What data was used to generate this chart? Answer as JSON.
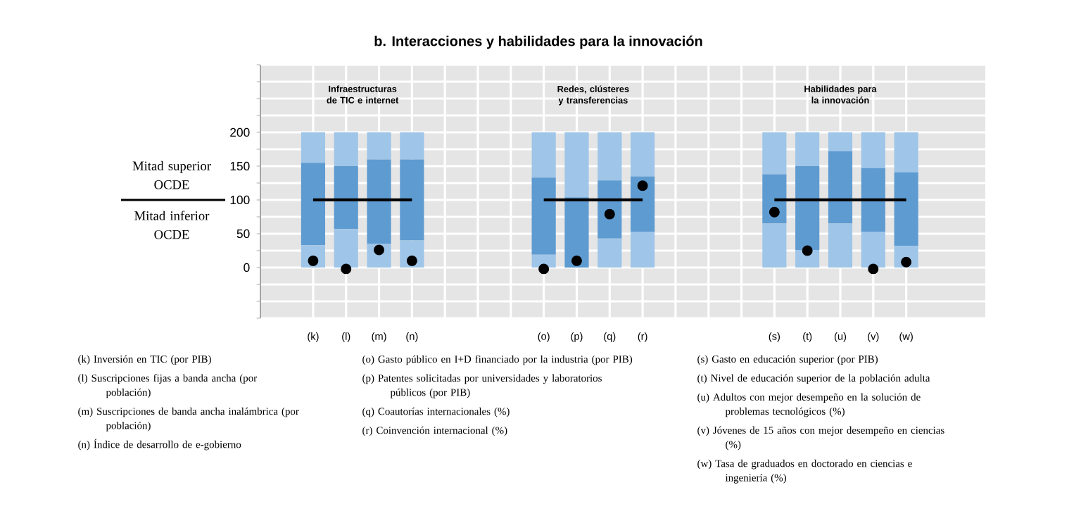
{
  "chart_data": {
    "type": "bar",
    "title": "b. Interacciones y habilidades para la innovación",
    "categories": [
      "(k)",
      "(l)",
      "(m)",
      "(n)",
      null,
      null,
      null,
      "(o)",
      "(p)",
      "(q)",
      "(r)",
      null,
      null,
      null,
      "(s)",
      "(t)",
      "(u)",
      "(v)",
      "(w)"
    ],
    "stacked": true,
    "series": [
      {
        "color": "#9fc5e8",
        "values": [
          33,
          57,
          35,
          40,
          null,
          null,
          null,
          19,
          0,
          43,
          53,
          null,
          null,
          null,
          65,
          26,
          65,
          53,
          32
        ]
      },
      {
        "color": "#5e9bd1",
        "values": [
          122,
          93,
          125,
          120,
          null,
          null,
          null,
          114,
          104,
          86,
          82,
          null,
          null,
          null,
          73,
          124,
          107,
          94,
          109
        ]
      },
      {
        "color": "#9fc5e8",
        "values": [
          45,
          50,
          40,
          40,
          null,
          null,
          null,
          67,
          96,
          71,
          65,
          null,
          null,
          null,
          62,
          50,
          28,
          53,
          59
        ]
      },
      {
        "type": "line",
        "color": "#000000",
        "marker": "none",
        "values": [
          100,
          100,
          100,
          100,
          null,
          null,
          null,
          100,
          100,
          100,
          100,
          null,
          null,
          null,
          100,
          100,
          100,
          100,
          100
        ]
      },
      {
        "type": "scatter",
        "color": "#000000",
        "marker": "circle",
        "values": [
          10,
          -2,
          26,
          10,
          null,
          null,
          null,
          -2,
          10,
          79,
          121,
          null,
          null,
          null,
          82,
          25,
          null,
          -2,
          8
        ]
      }
    ],
    "ylim": [
      -75,
      300
    ],
    "yticks": [
      {
        "value": -75,
        "label": null
      },
      {
        "value": -50,
        "label": null
      },
      {
        "value": -25,
        "label": null
      },
      0,
      {
        "value": 25,
        "label": null
      },
      50,
      {
        "value": 75,
        "label": null
      },
      100,
      {
        "value": 125,
        "label": null
      },
      150,
      {
        "value": 175,
        "label": null
      },
      200,
      {
        "value": 225,
        "label": null
      },
      {
        "value": 250,
        "label": null
      },
      {
        "value": 275,
        "label": null
      },
      {
        "value": 300,
        "label": null
      }
    ],
    "grid": true,
    "annotations": [
      "Mitad superior OCDE",
      "Mitad inferior OCDE",
      "Infraestructuras de TIC e internet",
      "Redes, clústeres y transferencias",
      "Habilidades para la innovación",
      "(k) Inversión en TIC (por PIB)",
      "(l) Suscripciones fijas a banda ancha (por población)",
      "(m) Suscripciones de banda ancha inalámbrica (por población)",
      "(n) Índice de desarrollo de e-gobierno",
      "(o) Gasto público en I+D financiado por la industria (por PIB)",
      "(p) Patentes solicitadas por universidades y laboratorios públicos (por PIB)",
      "(q) Coautorías internacionales (%)",
      "(r) Coinvención internacional (%)",
      "(s) Gasto en educación superior (por PIB)",
      "(t) Nivel de educación superior de la población adulta",
      "(u) Adultos con mejor desempeño en la solución de problemas tecnológicos (%)",
      "(v) Jóvenes de 15 años con mejor desempeño en ciencias (%)",
      "(w) Tasa de graduados en doctorado en ciencias e ingeniería (%)"
    ]
  }
}
